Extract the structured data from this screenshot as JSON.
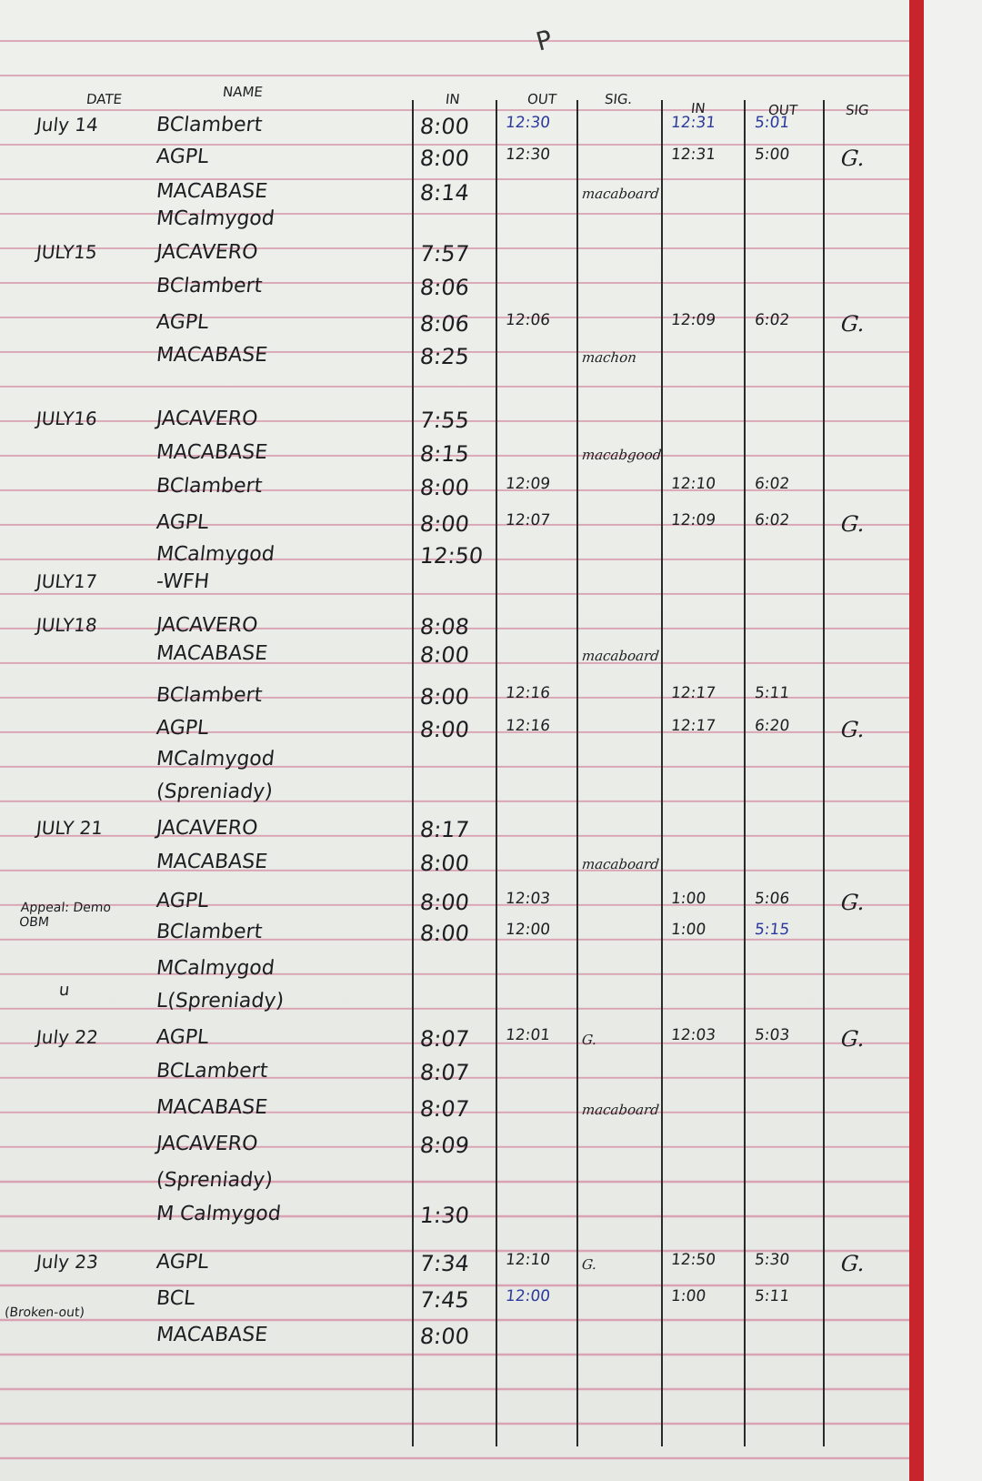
{
  "top_mark": "P",
  "headers": {
    "date": "DATE",
    "name": "NAME",
    "in": "IN",
    "out": "OUT",
    "sig": "SIG.",
    "in2": "IN",
    "out2": "OUT",
    "sig2": "SIG"
  },
  "side_notes": {
    "appeal": "Appeal: Demo OBM",
    "ditto": "u",
    "broken": "(Broken-out)"
  },
  "rows": [
    {
      "date": "July 14",
      "name": "BClambert",
      "in": "8:00",
      "out": "12:30",
      "sig": "",
      "in2": "12:31",
      "out2": "5:01",
      "sig2": ""
    },
    {
      "date": "",
      "name": "AGPL",
      "in": "8:00",
      "out": "12:30",
      "sig": "",
      "in2": "12:31",
      "out2": "5:00",
      "sig2": "G."
    },
    {
      "date": "",
      "name": "MACABASE",
      "in": "8:14",
      "out": "",
      "sig": "macaboard",
      "in2": "",
      "out2": "",
      "sig2": ""
    },
    {
      "date": "",
      "name": "MCalmygod",
      "in": "",
      "out": "",
      "sig": "",
      "in2": "",
      "out2": "",
      "sig2": ""
    },
    {
      "date": "JULY15",
      "name": "JACAVERO",
      "in": "7:57",
      "out": "",
      "sig": "",
      "in2": "",
      "out2": "",
      "sig2": ""
    },
    {
      "date": "",
      "name": "BClambert",
      "in": "8:06",
      "out": "",
      "sig": "",
      "in2": "",
      "out2": "",
      "sig2": ""
    },
    {
      "date": "",
      "name": "AGPL",
      "in": "8:06",
      "out": "12:06",
      "sig": "",
      "in2": "12:09",
      "out2": "6:02",
      "sig2": "G."
    },
    {
      "date": "",
      "name": "MACABASE",
      "in": "8:25",
      "out": "",
      "sig": "machon",
      "in2": "",
      "out2": "",
      "sig2": ""
    },
    {
      "date": "JULY16",
      "name": "JACAVERO",
      "in": "7:55",
      "out": "",
      "sig": "",
      "in2": "",
      "out2": "",
      "sig2": ""
    },
    {
      "date": "",
      "name": "MACABASE",
      "in": "8:15",
      "out": "",
      "sig": "macabgood",
      "in2": "",
      "out2": "",
      "sig2": ""
    },
    {
      "date": "",
      "name": "BClambert",
      "in": "8:00",
      "out": "12:09",
      "sig": "",
      "in2": "12:10",
      "out2": "6:02",
      "sig2": ""
    },
    {
      "date": "",
      "name": "AGPL",
      "in": "8:00",
      "out": "12:07",
      "sig": "",
      "in2": "12:09",
      "out2": "6:02",
      "sig2": "G."
    },
    {
      "date": "",
      "name": "MCalmygod",
      "in": "12:50",
      "out": "",
      "sig": "",
      "in2": "",
      "out2": "",
      "sig2": ""
    },
    {
      "date": "JULY17",
      "name": "-WFH",
      "in": "",
      "out": "",
      "sig": "",
      "in2": "",
      "out2": "",
      "sig2": ""
    },
    {
      "date": "JULY18",
      "name": "JACAVERO",
      "in": "8:08",
      "out": "",
      "sig": "",
      "in2": "",
      "out2": "",
      "sig2": ""
    },
    {
      "date": "",
      "name": "MACABASE",
      "in": "8:00",
      "out": "",
      "sig": "macaboard",
      "in2": "",
      "out2": "",
      "sig2": ""
    },
    {
      "date": "",
      "name": "BClambert",
      "in": "8:00",
      "out": "12:16",
      "sig": "",
      "in2": "12:17",
      "out2": "5:11",
      "sig2": ""
    },
    {
      "date": "",
      "name": "AGPL",
      "in": "8:00",
      "out": "12:16",
      "sig": "",
      "in2": "12:17",
      "out2": "6:20",
      "sig2": "G."
    },
    {
      "date": "",
      "name": "MCalmygod",
      "in": "",
      "out": "",
      "sig": "",
      "in2": "",
      "out2": "",
      "sig2": ""
    },
    {
      "date": "",
      "name": "(Spreniady)",
      "in": "",
      "out": "",
      "sig": "",
      "in2": "",
      "out2": "",
      "sig2": ""
    },
    {
      "date": "JULY 21",
      "name": "JACAVERO",
      "in": "8:17",
      "out": "",
      "sig": "",
      "in2": "",
      "out2": "",
      "sig2": ""
    },
    {
      "date": "",
      "name": "MACABASE",
      "in": "8:00",
      "out": "",
      "sig": "macaboard",
      "in2": "",
      "out2": "",
      "sig2": ""
    },
    {
      "date": "",
      "name": "AGPL",
      "in": "8:00",
      "out": "12:03",
      "sig": "",
      "in2": "1:00",
      "out2": "5:06",
      "sig2": "G."
    },
    {
      "date": "",
      "name": "BClambert",
      "in": "8:00",
      "out": "12:00",
      "sig": "",
      "in2": "1:00",
      "out2": "5:15",
      "sig2": ""
    },
    {
      "date": "",
      "name": "MCalmygod",
      "in": "",
      "out": "",
      "sig": "",
      "in2": "",
      "out2": "",
      "sig2": ""
    },
    {
      "date": "",
      "name": "L(Spreniady)",
      "in": "",
      "out": "",
      "sig": "",
      "in2": "",
      "out2": "",
      "sig2": ""
    },
    {
      "date": "July 22",
      "name": "AGPL",
      "in": "8:07",
      "out": "12:01",
      "sig": "G.",
      "in2": "12:03",
      "out2": "5:03",
      "sig2": "G."
    },
    {
      "date": "",
      "name": "BCLambert",
      "in": "8:07",
      "out": "",
      "sig": "",
      "in2": "",
      "out2": "",
      "sig2": ""
    },
    {
      "date": "",
      "name": "MACABASE",
      "in": "8:07",
      "out": "",
      "sig": "macaboard",
      "in2": "",
      "out2": "",
      "sig2": ""
    },
    {
      "date": "",
      "name": "JACAVERO",
      "in": "8:09",
      "out": "",
      "sig": "",
      "in2": "",
      "out2": "",
      "sig2": ""
    },
    {
      "date": "",
      "name": "(Spreniady)",
      "in": "",
      "out": "",
      "sig": "",
      "in2": "",
      "out2": "",
      "sig2": ""
    },
    {
      "date": "",
      "name": "M Calmygod",
      "in": "1:30",
      "out": "",
      "sig": "",
      "in2": "",
      "out2": "",
      "sig2": ""
    },
    {
      "date": "July 23",
      "name": "AGPL",
      "in": "7:34",
      "out": "12:10",
      "sig": "G.",
      "in2": "12:50",
      "out2": "5:30",
      "sig2": "G."
    },
    {
      "date": "",
      "name": "BCL",
      "in": "7:45",
      "out": "12:00",
      "sig": "",
      "in2": "1:00",
      "out2": "5:11",
      "sig2": ""
    },
    {
      "date": "",
      "name": "MACABASE",
      "in": "8:00",
      "out": "",
      "sig": "",
      "in2": "",
      "out2": "",
      "sig2": ""
    }
  ],
  "ink_colors": {
    "black": "#1e1e22",
    "blue": "#2b3a9c",
    "rule": "#d9a3b3",
    "margin_red": "#c8242b"
  }
}
